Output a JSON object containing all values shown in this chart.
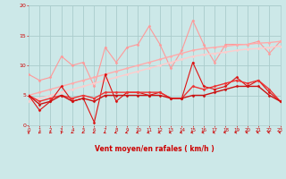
{
  "bg_color": "#cce8e8",
  "grid_color": "#aacccc",
  "xlabel": "Vent moyen/en rafales ( km/h )",
  "xlabel_color": "#cc0000",
  "tick_color": "#cc0000",
  "xlim": [
    0,
    23
  ],
  "ylim": [
    0,
    20
  ],
  "yticks": [
    0,
    5,
    10,
    15,
    20
  ],
  "xticks": [
    0,
    1,
    2,
    3,
    4,
    5,
    6,
    7,
    8,
    9,
    10,
    11,
    12,
    13,
    14,
    15,
    16,
    17,
    18,
    19,
    20,
    21,
    22,
    23
  ],
  "x": [
    0,
    1,
    2,
    3,
    4,
    5,
    6,
    7,
    8,
    9,
    10,
    11,
    12,
    13,
    14,
    15,
    16,
    17,
    18,
    19,
    20,
    21,
    22,
    23
  ],
  "lines": [
    {
      "y": [
        8.5,
        7.5,
        8.0,
        11.5,
        10.0,
        10.5,
        6.5,
        13.0,
        10.5,
        13.0,
        13.5,
        16.5,
        13.5,
        9.5,
        12.5,
        17.5,
        13.5,
        10.5,
        13.5,
        13.5,
        13.5,
        14.0,
        12.0,
        14.0
      ],
      "color": "#ff9999",
      "lw": 0.8,
      "marker": "D",
      "ms": 1.5
    },
    {
      "y": [
        5.0,
        5.5,
        6.0,
        6.5,
        7.0,
        7.5,
        8.0,
        8.5,
        9.0,
        9.5,
        10.0,
        10.5,
        11.0,
        11.5,
        12.0,
        12.5,
        12.8,
        13.0,
        13.2,
        13.4,
        13.5,
        13.7,
        13.8,
        14.0
      ],
      "color": "#ffaaaa",
      "lw": 1.0,
      "marker": "D",
      "ms": 1.5
    },
    {
      "y": [
        4.0,
        4.5,
        5.0,
        5.5,
        6.0,
        6.5,
        7.0,
        7.5,
        8.0,
        8.5,
        9.0,
        9.5,
        10.0,
        10.5,
        11.0,
        11.5,
        11.8,
        12.0,
        12.2,
        12.5,
        12.7,
        12.8,
        13.0,
        13.2
      ],
      "color": "#ffcccc",
      "lw": 1.0,
      "marker": "D",
      "ms": 1.5
    },
    {
      "y": [
        5.0,
        2.5,
        4.0,
        6.5,
        4.0,
        4.5,
        0.5,
        8.5,
        4.0,
        5.5,
        5.5,
        5.0,
        5.5,
        4.5,
        4.5,
        10.5,
        6.5,
        6.0,
        6.5,
        8.0,
        6.5,
        7.5,
        5.5,
        4.0
      ],
      "color": "#dd1111",
      "lw": 0.8,
      "marker": "D",
      "ms": 1.5
    },
    {
      "y": [
        5.0,
        4.0,
        4.5,
        5.0,
        4.5,
        5.0,
        4.5,
        5.5,
        5.5,
        5.5,
        5.5,
        5.5,
        5.5,
        4.5,
        4.5,
        6.5,
        6.0,
        6.5,
        7.0,
        7.5,
        7.0,
        7.5,
        6.0,
        4.0
      ],
      "color": "#ee3333",
      "lw": 1.0,
      "marker": "D",
      "ms": 1.5
    },
    {
      "y": [
        5.0,
        3.5,
        4.0,
        5.0,
        4.0,
        4.5,
        4.0,
        5.0,
        5.0,
        5.0,
        5.0,
        5.0,
        5.0,
        4.5,
        4.5,
        5.0,
        5.0,
        5.5,
        6.0,
        6.5,
        6.5,
        6.5,
        5.0,
        4.0
      ],
      "color": "#cc1111",
      "lw": 1.0,
      "marker": "D",
      "ms": 1.5
    }
  ],
  "arrow_angles_deg": [
    180,
    210,
    215,
    195,
    220,
    225,
    230,
    235,
    240,
    245,
    250,
    255,
    255,
    260,
    265,
    265,
    270,
    270,
    275,
    275,
    280,
    285,
    290,
    295
  ]
}
